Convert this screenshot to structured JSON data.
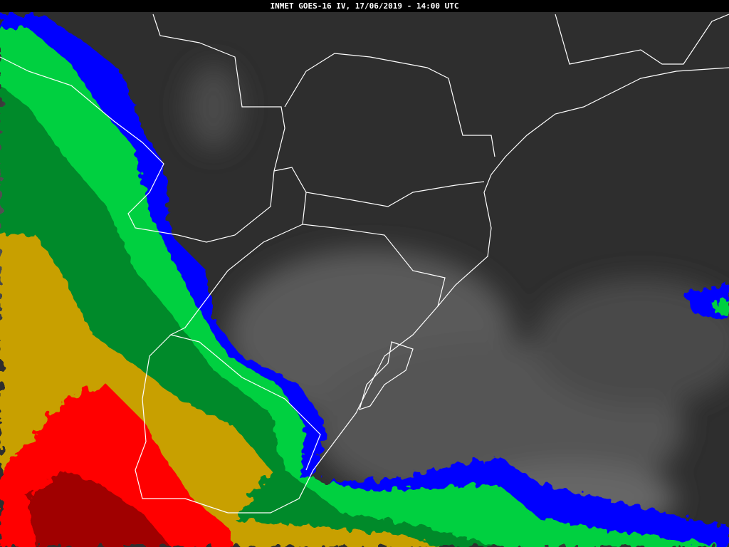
{
  "header": {
    "title": "INMET GOES-16 IV, 17/06/2019 - 14:00 UTC"
  },
  "image": {
    "type": "infrared satellite image",
    "colors": {
      "background_land": "#2e2e2e",
      "background_ocean": "#3a3a3a",
      "high_cloud_gray": "#7a7a7a",
      "blue": "#0000ff",
      "light_green": "#00d040",
      "dark_green": "#008a2a",
      "gold": "#c8a000",
      "red": "#ff0000",
      "dark_red": "#a00000",
      "borders": "#ffffff"
    }
  }
}
